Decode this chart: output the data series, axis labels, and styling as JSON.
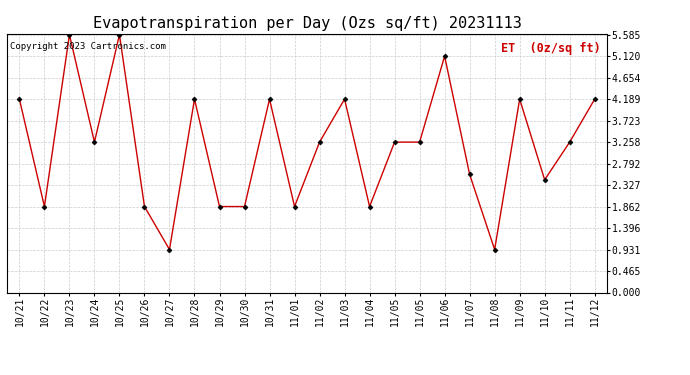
{
  "title": "Evapotranspiration per Day (Ozs sq/ft) 20231113",
  "legend_label": "ET  (0z/sq ft)",
  "copyright": "Copyright 2023 Cartronics.com",
  "x_labels": [
    "10/21",
    "10/22",
    "10/23",
    "10/24",
    "10/25",
    "10/26",
    "10/27",
    "10/28",
    "10/29",
    "10/30",
    "10/31",
    "11/01",
    "11/02",
    "11/03",
    "11/04",
    "11/05",
    "11/05",
    "11/06",
    "11/07",
    "11/08",
    "11/09",
    "11/10",
    "11/11",
    "11/12"
  ],
  "y_values": [
    4.189,
    1.862,
    5.585,
    3.258,
    5.585,
    1.862,
    0.931,
    4.189,
    1.862,
    1.862,
    4.189,
    1.862,
    3.258,
    4.189,
    1.862,
    3.258,
    3.258,
    5.12,
    2.558,
    0.931,
    4.189,
    2.441,
    3.258,
    4.189
  ],
  "line_color": "#cc0000",
  "marker_color": "#000000",
  "background_color": "#ffffff",
  "grid_color": "#cccccc",
  "y_min": 0.0,
  "y_max": 5.585,
  "y_ticks": [
    0.0,
    0.465,
    0.931,
    1.396,
    1.862,
    2.327,
    2.792,
    3.258,
    3.723,
    4.189,
    4.654,
    5.12,
    5.585
  ],
  "title_fontsize": 11,
  "tick_fontsize": 7,
  "legend_fontsize": 8.5,
  "copyright_fontsize": 6.5
}
